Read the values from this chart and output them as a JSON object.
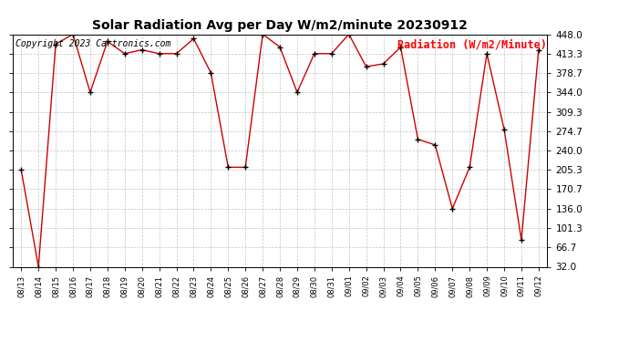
{
  "title": "Solar Radiation Avg per Day W/m2/minute 20230912",
  "copyright_text": "Copyright 2023 Cartronics.com",
  "legend_label": "Radiation (W/m2/Minute)",
  "dates": [
    "08/13",
    "08/14",
    "08/15",
    "08/16",
    "08/17",
    "08/18",
    "08/19",
    "08/20",
    "08/21",
    "08/22",
    "08/23",
    "08/24",
    "08/25",
    "08/26",
    "08/27",
    "08/28",
    "08/29",
    "08/30",
    "08/31",
    "09/01",
    "09/02",
    "09/03",
    "09/04",
    "09/05",
    "09/06",
    "09/07",
    "09/08",
    "09/09",
    "09/10",
    "09/11",
    "09/12"
  ],
  "values": [
    205.0,
    32.0,
    430.0,
    448.0,
    344.0,
    435.0,
    413.3,
    420.0,
    413.3,
    413.3,
    440.0,
    378.7,
    210.0,
    210.0,
    448.0,
    425.0,
    344.0,
    413.3,
    413.3,
    448.0,
    390.0,
    395.0,
    425.0,
    260.0,
    250.0,
    136.0,
    210.0,
    413.3,
    278.0,
    80.0,
    420.0
  ],
  "line_color": "#cc0000",
  "marker_color": "#000000",
  "background_color": "#ffffff",
  "grid_color": "#aaaaaa",
  "title_fontsize": 10,
  "copyright_fontsize": 7,
  "legend_fontsize": 8.5,
  "tick_fontsize": 7.5,
  "xtick_fontsize": 6,
  "ymin": 32.0,
  "ymax": 448.0,
  "ytick_values": [
    32.0,
    66.7,
    101.3,
    136.0,
    170.7,
    205.3,
    240.0,
    274.7,
    309.3,
    344.0,
    378.7,
    413.3,
    448.0
  ],
  "ytick_labels": [
    "32.0",
    "66.7",
    "101.3",
    "136.0",
    "170.7",
    "205.3",
    "240.0",
    "274.7",
    "309.3",
    "344.0",
    "378.7",
    "413.3",
    "448.0"
  ]
}
